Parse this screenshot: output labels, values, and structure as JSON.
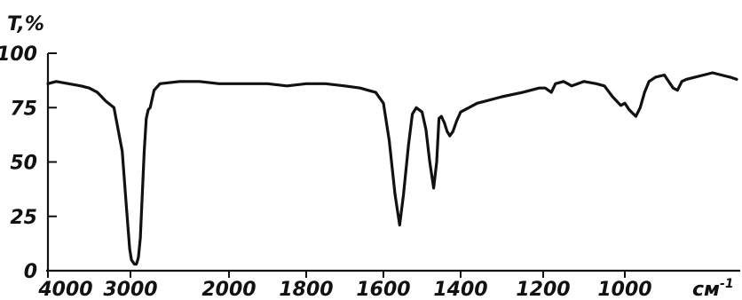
{
  "chart_data": {
    "type": "line",
    "title": "",
    "ylabel": "T,%",
    "xlabel": "cm⁻¹",
    "xlabel_text": "см",
    "xlabel_sup": "-1",
    "x_axis": "wavenumber, reversed, piecewise scale (4000–2000 compressed, 2000–1000 expanded)",
    "ylim": [
      0,
      100
    ],
    "yticks": [
      0,
      25,
      50,
      75,
      100
    ],
    "ytick_labels": [
      "0",
      "25",
      "50",
      "75",
      "100"
    ],
    "xticks": [
      4000,
      3000,
      2000,
      1800,
      1600,
      1400,
      1200,
      1000
    ],
    "xtick_labels": [
      "4000",
      "3000",
      "2000",
      "1800",
      "1600",
      "1400",
      "1200",
      "1000"
    ],
    "grid": false,
    "legend": "none",
    "series": [
      {
        "color": "#111111",
        "points": [
          [
            4000,
            86
          ],
          [
            3900,
            87
          ],
          [
            3750,
            86
          ],
          [
            3600,
            85
          ],
          [
            3500,
            84
          ],
          [
            3400,
            82
          ],
          [
            3350,
            80
          ],
          [
            3300,
            78
          ],
          [
            3200,
            75
          ],
          [
            3100,
            55
          ],
          [
            3050,
            30
          ],
          [
            3010,
            10
          ],
          [
            2990,
            5
          ],
          [
            2960,
            3
          ],
          [
            2940,
            3
          ],
          [
            2920,
            6
          ],
          [
            2900,
            15
          ],
          [
            2880,
            35
          ],
          [
            2860,
            55
          ],
          [
            2840,
            70
          ],
          [
            2820,
            74
          ],
          [
            2800,
            75
          ],
          [
            2760,
            83
          ],
          [
            2700,
            86
          ],
          [
            2500,
            87
          ],
          [
            2300,
            87
          ],
          [
            2100,
            86
          ],
          [
            2000,
            86
          ],
          [
            1950,
            86
          ],
          [
            1900,
            86
          ],
          [
            1850,
            85
          ],
          [
            1800,
            86
          ],
          [
            1750,
            86
          ],
          [
            1700,
            85
          ],
          [
            1660,
            84
          ],
          [
            1640,
            83
          ],
          [
            1620,
            82
          ],
          [
            1600,
            77
          ],
          [
            1585,
            60
          ],
          [
            1570,
            35
          ],
          [
            1558,
            21
          ],
          [
            1548,
            35
          ],
          [
            1535,
            58
          ],
          [
            1525,
            72
          ],
          [
            1515,
            75
          ],
          [
            1500,
            73
          ],
          [
            1490,
            65
          ],
          [
            1480,
            50
          ],
          [
            1470,
            38
          ],
          [
            1462,
            50
          ],
          [
            1456,
            70
          ],
          [
            1450,
            71
          ],
          [
            1442,
            68
          ],
          [
            1435,
            64
          ],
          [
            1428,
            62
          ],
          [
            1420,
            64
          ],
          [
            1410,
            69
          ],
          [
            1400,
            73
          ],
          [
            1380,
            75
          ],
          [
            1360,
            77
          ],
          [
            1340,
            78
          ],
          [
            1300,
            80
          ],
          [
            1250,
            82
          ],
          [
            1210,
            84
          ],
          [
            1195,
            84
          ],
          [
            1180,
            82
          ],
          [
            1170,
            86
          ],
          [
            1150,
            87
          ],
          [
            1130,
            85
          ],
          [
            1115,
            86
          ],
          [
            1100,
            87
          ],
          [
            1070,
            86
          ],
          [
            1050,
            85
          ],
          [
            1030,
            80
          ],
          [
            1010,
            76
          ],
          [
            1000,
            77
          ],
          [
            990,
            74
          ],
          [
            975,
            71
          ],
          [
            965,
            75
          ],
          [
            955,
            82
          ],
          [
            945,
            87
          ],
          [
            930,
            89
          ],
          [
            910,
            90
          ],
          [
            900,
            87
          ],
          [
            890,
            84
          ],
          [
            880,
            83
          ],
          [
            870,
            87
          ],
          [
            860,
            88
          ],
          [
            840,
            89
          ],
          [
            820,
            90
          ],
          [
            800,
            91
          ],
          [
            780,
            90
          ],
          [
            760,
            89
          ],
          [
            745,
            88
          ]
        ]
      }
    ]
  },
  "labels": {
    "y_title": "T,%",
    "x_unit": "см",
    "x_unit_sup": "-1"
  }
}
